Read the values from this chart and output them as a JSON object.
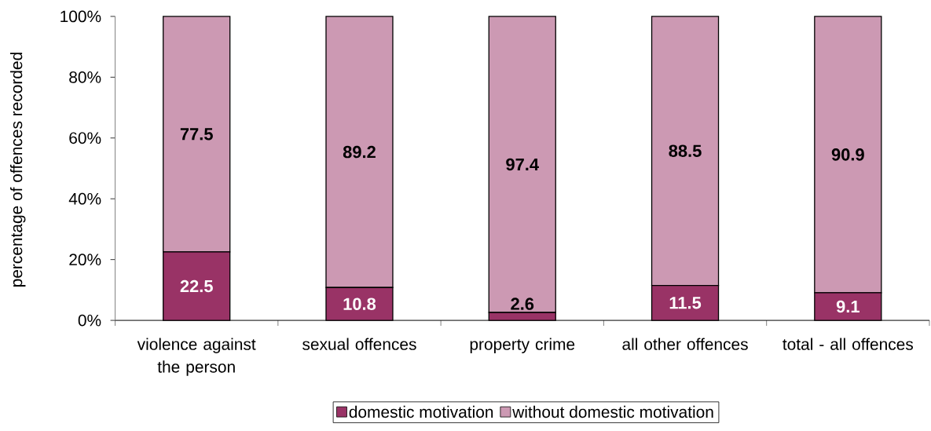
{
  "chart_data": {
    "type": "bar",
    "stacked": true,
    "ylabel": "percentage of offences recorded",
    "categories": [
      "violence against the person",
      "sexual offences",
      "property crime",
      "all other offences",
      "total - all offences"
    ],
    "series": [
      {
        "name": "domestic motivation",
        "color": "#993366",
        "values": [
          22.5,
          10.8,
          2.6,
          11.5,
          9.1
        ]
      },
      {
        "name": "without domestic motivation",
        "color": "#cc99b3",
        "values": [
          77.5,
          89.2,
          97.4,
          88.5,
          90.9
        ]
      }
    ],
    "ylim": [
      0,
      100
    ],
    "yticks": [
      {
        "value": 0,
        "label": "0%"
      },
      {
        "value": 20,
        "label": "20%"
      },
      {
        "value": 40,
        "label": "40%"
      },
      {
        "value": 60,
        "label": "60%"
      },
      {
        "value": 80,
        "label": "80%"
      },
      {
        "value": 100,
        "label": "100%"
      }
    ],
    "data_labels": true,
    "legend": "bottom"
  }
}
